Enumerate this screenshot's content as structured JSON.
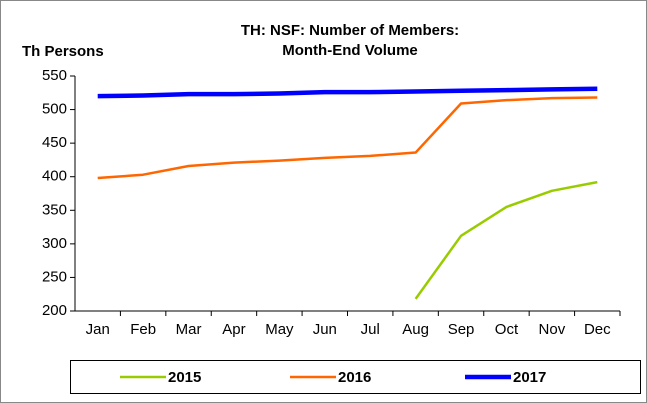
{
  "chart_data": {
    "type": "line",
    "title": "TH: NSF: Number of Members:",
    "subtitle": "Month-End Volume",
    "y_label": "Th Persons",
    "categories": [
      "Jan",
      "Feb",
      "Mar",
      "Apr",
      "May",
      "Jun",
      "Jul",
      "Aug",
      "Sep",
      "Oct",
      "Nov",
      "Dec"
    ],
    "series": [
      {
        "name": "2015",
        "color": "#99cc00",
        "values": [
          null,
          null,
          null,
          null,
          null,
          null,
          null,
          218,
          312,
          355,
          379,
          392
        ]
      },
      {
        "name": "2016",
        "color": "#ff6600",
        "values": [
          398,
          403,
          416,
          421,
          424,
          428,
          431,
          436,
          509,
          514,
          517,
          518
        ]
      },
      {
        "name": "2017",
        "color": "#0000ff",
        "values": [
          520,
          521,
          523,
          523,
          524,
          526,
          526,
          527,
          528,
          529,
          530,
          531
        ]
      }
    ],
    "ylim": [
      200,
      550
    ],
    "yticks": [
      200,
      250,
      300,
      350,
      400,
      450,
      500,
      550
    ],
    "legend": "bottom",
    "grid": false
  }
}
